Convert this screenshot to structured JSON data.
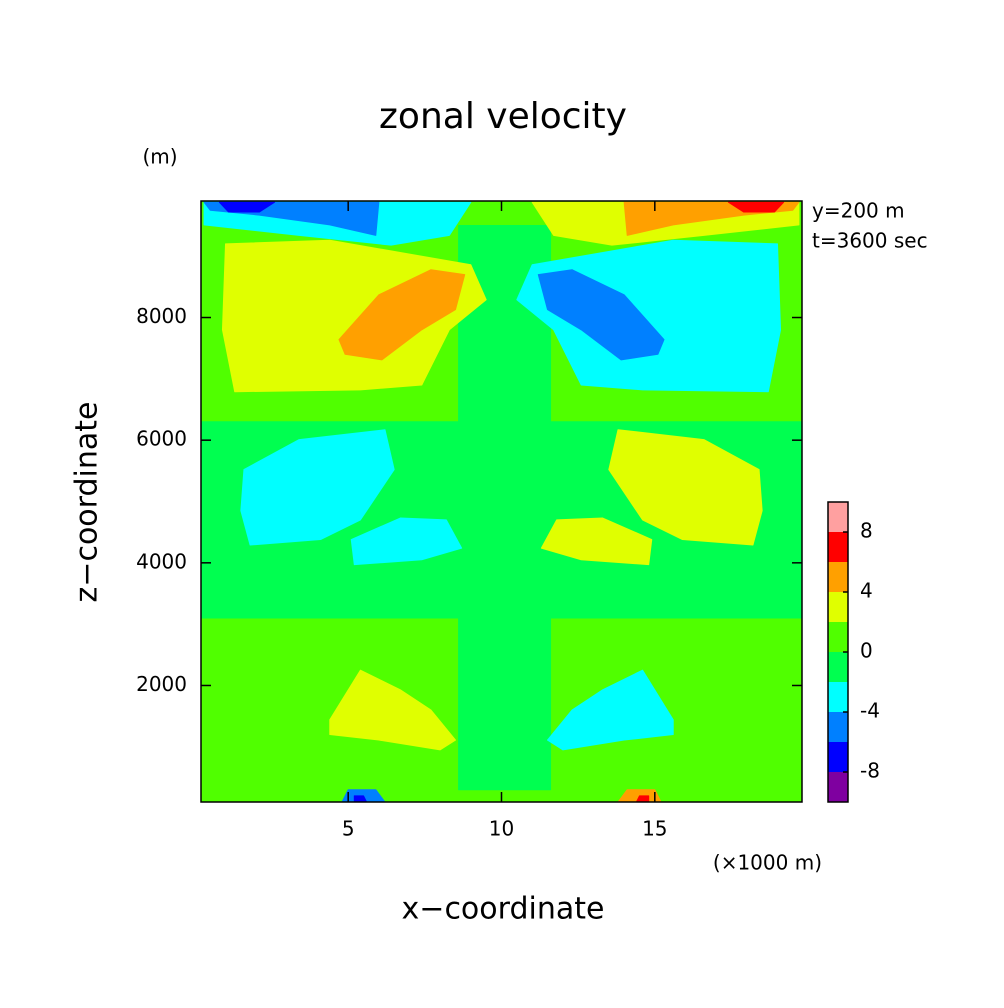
{
  "chart_data": {
    "type": "contour",
    "title": "zonal velocity",
    "x_label": "x−coordinate",
    "y_label": "z−coordinate",
    "x_unit": "(×1000 m)",
    "y_unit": "(m)",
    "annotations": [
      "y=200 m",
      "t=3600 sec"
    ],
    "xlim": [
      0.2,
      19.8
    ],
    "ylim": [
      100,
      9900
    ],
    "xticks": [
      5,
      10,
      15
    ],
    "yticks": [
      2000,
      4000,
      6000,
      8000
    ],
    "levels": [
      -10,
      -8,
      -6,
      -4,
      -2,
      0,
      2,
      4,
      6,
      8,
      10
    ],
    "colors": [
      "#7f00a0",
      "#0000ff",
      "#0080ff",
      "#00ffff",
      "#00ff50",
      "#50ff00",
      "#e0ff00",
      "#ffa000",
      "#ff0000",
      "#ffa0a0"
    ],
    "colorbar_ticks": [
      -8,
      -4,
      0,
      4,
      8
    ],
    "regions": [
      {
        "value": 0,
        "x": [
          0.2,
          19.8,
          19.8,
          0.2
        ],
        "z": [
          100,
          100,
          9900,
          9900
        ]
      },
      {
        "value": -2,
        "x": [
          0.2,
          19.8,
          19.8,
          0.2
        ],
        "z": [
          3100,
          3100,
          6300,
          6300
        ]
      },
      {
        "value": -2,
        "x": [
          8.6,
          11.6,
          11.6,
          8.6
        ],
        "z": [
          300,
          300,
          9500,
          9500
        ]
      },
      {
        "value": 2,
        "x": [
          1.0,
          4.4,
          9.0,
          9.5,
          8.3,
          7.4,
          5.4,
          1.3,
          0.9
        ],
        "z": [
          9200,
          9260,
          8860,
          8290,
          7800,
          6900,
          6820,
          6790,
          7800
        ]
      },
      {
        "value": -4,
        "x": [
          19.0,
          15.6,
          11.0,
          10.5,
          11.7,
          12.6,
          14.6,
          18.7,
          19.1
        ],
        "z": [
          9200,
          9260,
          8860,
          8290,
          7800,
          6900,
          6820,
          6790,
          7800
        ]
      },
      {
        "value": 4,
        "x": [
          4.7,
          6.0,
          7.7,
          8.8,
          8.5,
          7.4,
          6.1,
          4.9
        ],
        "z": [
          7640,
          8370,
          8780,
          8700,
          8130,
          7800,
          7310,
          7400
        ]
      },
      {
        "value": -6,
        "x": [
          15.3,
          14.0,
          12.3,
          11.2,
          11.5,
          12.6,
          13.9,
          15.1
        ],
        "z": [
          7640,
          8370,
          8780,
          8700,
          8130,
          7800,
          7310,
          7400
        ]
      },
      {
        "value": -4,
        "x": [
          1.6,
          3.4,
          6.2,
          6.5,
          5.4,
          4.1,
          1.8,
          1.5
        ],
        "z": [
          5520,
          6010,
          6170,
          5520,
          4700,
          4380,
          4290,
          4850
        ]
      },
      {
        "value": 2,
        "x": [
          18.4,
          16.6,
          13.8,
          13.5,
          14.6,
          15.9,
          18.2,
          18.5
        ],
        "z": [
          5520,
          6010,
          6170,
          5520,
          4700,
          4380,
          4290,
          4850
        ]
      },
      {
        "value": -4,
        "x": [
          5.1,
          6.7,
          8.2,
          8.7,
          7.4,
          5.2
        ],
        "z": [
          4380,
          4730,
          4700,
          4240,
          4050,
          3970
        ]
      },
      {
        "value": 2,
        "x": [
          14.9,
          13.3,
          11.8,
          11.3,
          12.6,
          14.8
        ],
        "z": [
          4380,
          4730,
          4700,
          4240,
          4050,
          3970
        ]
      },
      {
        "value": 2,
        "x": [
          4.4,
          5.4,
          6.7,
          7.7,
          8.5,
          8.0,
          6.0,
          4.4
        ],
        "z": [
          1440,
          2250,
          1930,
          1600,
          1110,
          950,
          1110,
          1200
        ]
      },
      {
        "value": -4,
        "x": [
          15.6,
          14.6,
          13.3,
          12.3,
          11.5,
          12.0,
          14.0,
          15.6
        ],
        "z": [
          1440,
          2250,
          1930,
          1600,
          1110,
          950,
          1110,
          1200
        ]
      },
      {
        "value": -4,
        "x": [
          0.3,
          9.0,
          8.3,
          6.4,
          3.4,
          0.3
        ],
        "z": [
          9880,
          9880,
          9340,
          9180,
          9340,
          9510
        ]
      },
      {
        "value": -6,
        "x": [
          0.3,
          6.0,
          5.9,
          4.4,
          2.1,
          0.5
        ],
        "z": [
          9880,
          9880,
          9340,
          9510,
          9670,
          9750
        ]
      },
      {
        "value": -8,
        "x": [
          0.8,
          2.6,
          2.1,
          1.1
        ],
        "z": [
          9880,
          9880,
          9720,
          9720
        ]
      },
      {
        "value": 2,
        "x": [
          19.7,
          11.0,
          11.7,
          13.6,
          16.6,
          19.7
        ],
        "z": [
          9880,
          9880,
          9340,
          9180,
          9340,
          9510
        ]
      },
      {
        "value": 4,
        "x": [
          19.7,
          14.0,
          14.1,
          15.6,
          17.9,
          19.5
        ],
        "z": [
          9880,
          9880,
          9340,
          9510,
          9670,
          9750
        ]
      },
      {
        "value": 6,
        "x": [
          19.2,
          17.4,
          17.9,
          18.9
        ],
        "z": [
          9880,
          9880,
          9720,
          9720
        ]
      },
      {
        "value": -6,
        "x": [
          4.8,
          6.2,
          5.9,
          5.0
        ],
        "z": [
          100,
          100,
          300,
          300
        ]
      },
      {
        "value": -8,
        "x": [
          5.2,
          5.6,
          5.5,
          5.2
        ],
        "z": [
          100,
          100,
          200,
          200
        ]
      },
      {
        "value": 4,
        "x": [
          15.2,
          13.8,
          14.1,
          15.0
        ],
        "z": [
          100,
          100,
          300,
          300
        ]
      },
      {
        "value": 6,
        "x": [
          14.8,
          14.4,
          14.5,
          14.8
        ],
        "z": [
          100,
          100,
          200,
          200
        ]
      }
    ]
  }
}
